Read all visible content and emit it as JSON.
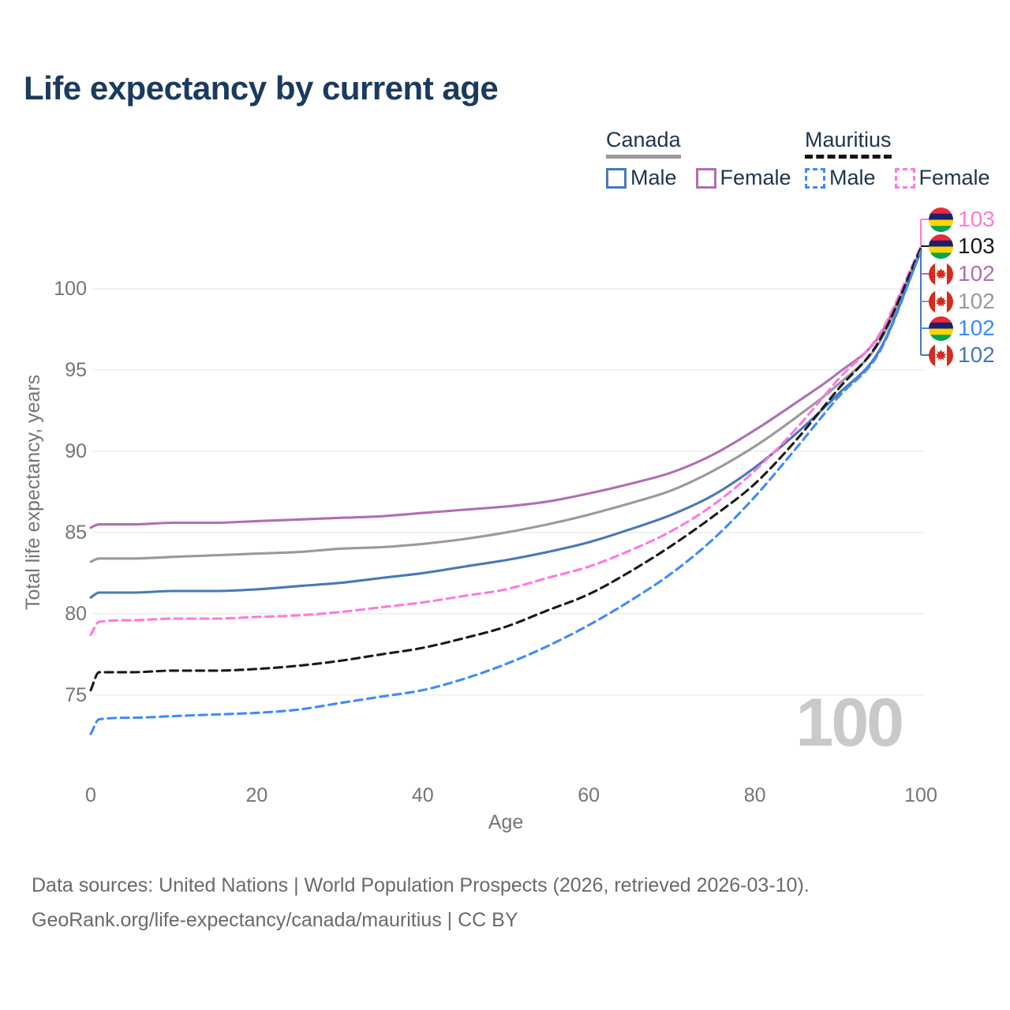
{
  "title": "Life expectancy by current age",
  "watermark": "100",
  "legend": {
    "groups": [
      {
        "label": "Canada",
        "line_style": "solid",
        "underline_color": "#9a9a9a",
        "items": [
          {
            "label": "Male",
            "series": "canada-male"
          },
          {
            "label": "Female",
            "series": "canada-female"
          }
        ]
      },
      {
        "label": "Mauritius",
        "line_style": "dashed",
        "underline_color": "#141414",
        "items": [
          {
            "label": "Male",
            "series": "mauritius-male"
          },
          {
            "label": "Female",
            "series": "mauritius-female"
          }
        ]
      }
    ]
  },
  "axes": {
    "x_label": "Age",
    "y_label": "Total life expectancy, years",
    "x_ticks": [
      0,
      20,
      40,
      60,
      80,
      100
    ],
    "y_ticks": [
      75,
      80,
      85,
      90,
      95,
      100
    ]
  },
  "chart_data": {
    "type": "line",
    "title": "Life expectancy by current age",
    "xlabel": "Age",
    "ylabel": "Total life expectancy, years",
    "xlim": [
      0,
      100
    ],
    "ylim": [
      72,
      103
    ],
    "grid": "horizontal",
    "x": [
      0,
      1,
      5,
      10,
      15,
      20,
      25,
      30,
      35,
      40,
      45,
      50,
      55,
      60,
      65,
      70,
      75,
      80,
      85,
      90,
      95,
      100
    ],
    "series": [
      {
        "id": "canada-female",
        "name": "Canada Female",
        "color": "#b06fb2",
        "dash": false,
        "values": [
          85.3,
          85.5,
          85.5,
          85.6,
          85.6,
          85.7,
          85.8,
          85.9,
          86.0,
          86.2,
          86.4,
          86.6,
          86.9,
          87.4,
          88.0,
          88.7,
          89.8,
          91.3,
          93.0,
          94.8,
          97.1,
          102.4
        ]
      },
      {
        "id": "canada-both",
        "name": "Canada Both sexes",
        "color": "#9a9a9a",
        "dash": false,
        "values": [
          83.2,
          83.4,
          83.4,
          83.5,
          83.6,
          83.7,
          83.8,
          84.0,
          84.1,
          84.3,
          84.6,
          85.0,
          85.5,
          86.1,
          86.8,
          87.6,
          88.8,
          90.3,
          92.1,
          94.1,
          96.7,
          102.4
        ]
      },
      {
        "id": "canada-male",
        "name": "Canada Male",
        "color": "#4878ba",
        "dash": false,
        "values": [
          81.0,
          81.3,
          81.3,
          81.4,
          81.4,
          81.5,
          81.7,
          81.9,
          82.2,
          82.5,
          82.9,
          83.3,
          83.8,
          84.4,
          85.2,
          86.1,
          87.3,
          89.0,
          91.1,
          93.5,
          96.2,
          102.3
        ]
      },
      {
        "id": "mauritius-female",
        "name": "Mauritius Female",
        "color": "#ff7ade",
        "dash": true,
        "values": [
          78.7,
          79.5,
          79.6,
          79.7,
          79.7,
          79.8,
          79.9,
          80.1,
          80.4,
          80.7,
          81.1,
          81.5,
          82.2,
          82.9,
          83.9,
          85.1,
          86.7,
          88.8,
          91.4,
          94.4,
          97.2,
          102.6
        ]
      },
      {
        "id": "mauritius-both",
        "name": "Mauritius Both sexes",
        "color": "#1a1a1a",
        "dash": true,
        "values": [
          75.3,
          76.4,
          76.4,
          76.5,
          76.5,
          76.6,
          76.8,
          77.1,
          77.5,
          77.9,
          78.5,
          79.2,
          80.2,
          81.2,
          82.6,
          84.2,
          86.0,
          88.0,
          90.7,
          93.8,
          96.8,
          102.5
        ]
      },
      {
        "id": "mauritius-male",
        "name": "Mauritius Male",
        "color": "#3e8bff",
        "dash": true,
        "values": [
          72.6,
          73.5,
          73.6,
          73.7,
          73.8,
          73.9,
          74.1,
          74.5,
          74.9,
          75.3,
          76.0,
          76.9,
          78.0,
          79.3,
          80.8,
          82.5,
          84.6,
          87.2,
          90.2,
          93.3,
          96.1,
          102.3
        ]
      }
    ],
    "end_labels": [
      {
        "value": "103",
        "series": "mauritius-female",
        "flag": "mauritius"
      },
      {
        "value": "103",
        "series": "mauritius-both",
        "flag": "mauritius"
      },
      {
        "value": "102",
        "series": "canada-female",
        "flag": "canada"
      },
      {
        "value": "102",
        "series": "canada-both",
        "flag": "canada"
      },
      {
        "value": "102",
        "series": "mauritius-male",
        "flag": "mauritius"
      },
      {
        "value": "102",
        "series": "canada-male",
        "flag": "canada"
      }
    ],
    "flag_colors": {
      "mauritius": [
        "#EA2839",
        "#1A206D",
        "#FFD500",
        "#00A551"
      ],
      "canada": {
        "red": "#d52b1e",
        "white": "#ffffff"
      }
    }
  },
  "footer": {
    "line1": "Data sources: United Nations | World Population Prospects (2026, retrieved 2026-03-10).",
    "line2": "GeoRank.org/life-expectancy/canada/mauritius | CC BY"
  }
}
